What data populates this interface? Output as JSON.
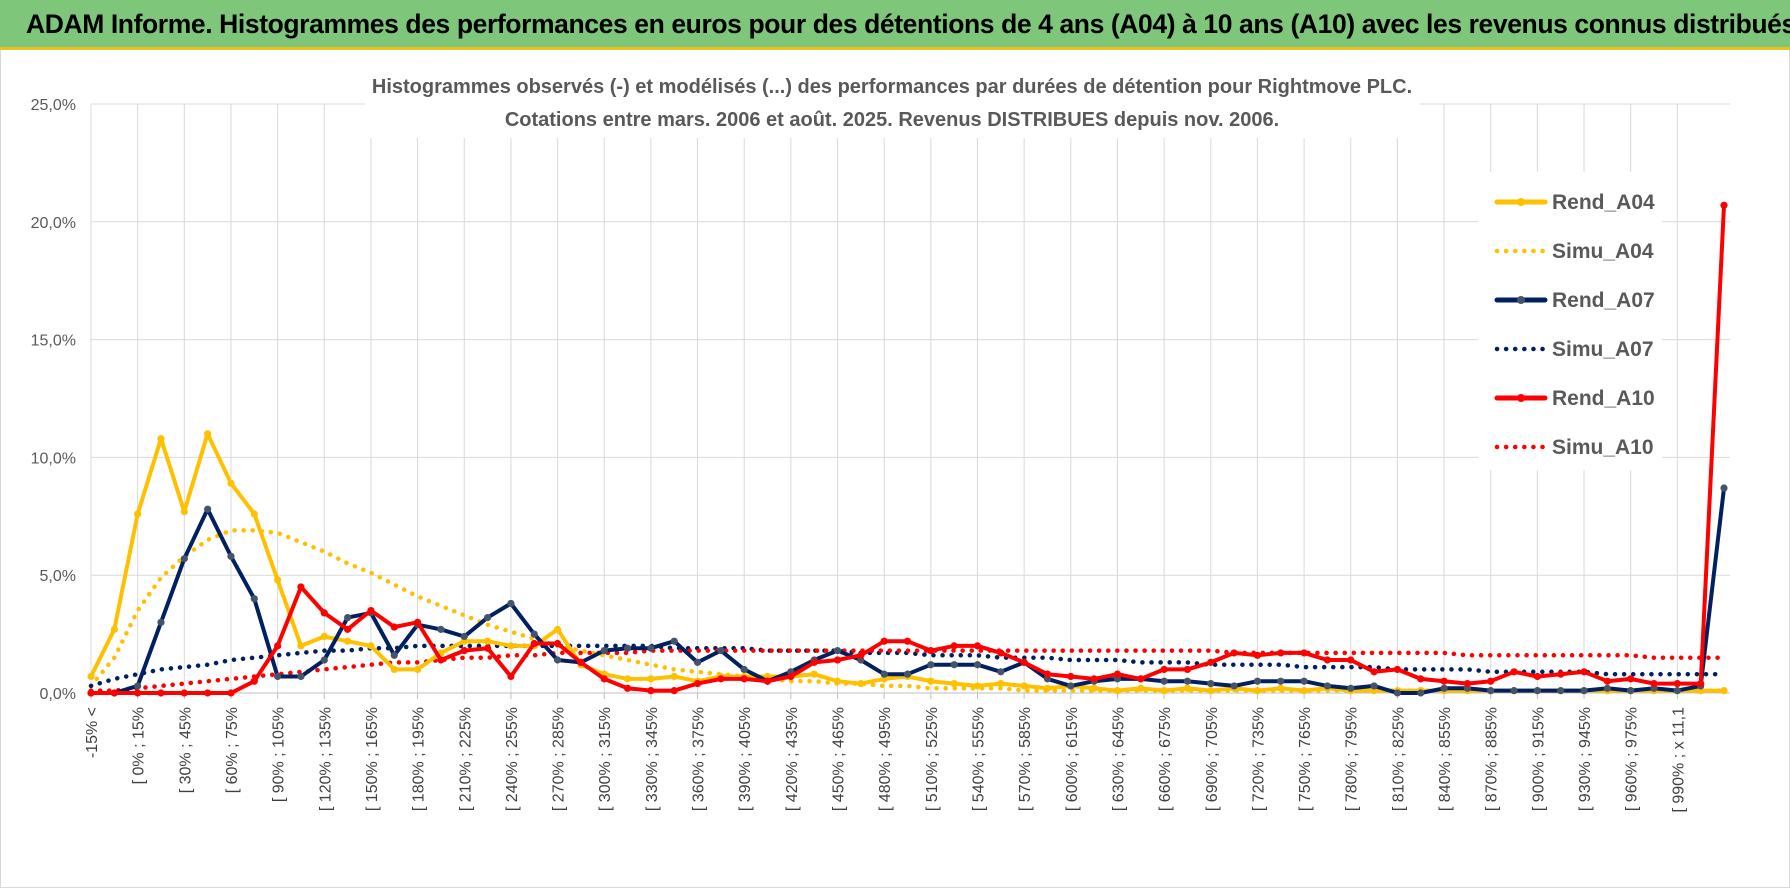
{
  "header": {
    "title": "ADAM Informe. Histogrammes des performances en euros pour des détentions de 4 ans (A04) à 10 ans (A10) avec les revenus connus distribués"
  },
  "chart_data": {
    "type": "line",
    "title_line1": "Histogrammes observés (-) et modélisés (...) des performances par durées de détention pour Rightmove PLC.",
    "title_line2": "Cotations entre mars. 2006 et août. 2025. Revenus DISTRIBUES depuis nov. 2006.",
    "ylim": [
      0,
      25
    ],
    "yticks": [
      "0,0%",
      "5,0%",
      "10,0%",
      "15,0%",
      "20,0%",
      "25,0%"
    ],
    "grid": true,
    "legend_position": "right",
    "category_labels": [
      "-15% <",
      "[ 0% ; 15%",
      "[ 30% ; 45%",
      "[ 60% ; 75%",
      "[ 90% ; 105%",
      "[ 120% ; 135%",
      "[ 150% ; 165%",
      "[ 180% ; 195%",
      "[ 210% ; 225%",
      "[ 240% ; 255%",
      "[ 270% ; 285%",
      "[ 300% ; 315%",
      "[ 330% ; 345%",
      "[ 360% ; 375%",
      "[ 390% ; 405%",
      "[ 420% ; 435%",
      "[ 450% ; 465%",
      "[ 480% ; 495%",
      "[ 510% ; 525%",
      "[ 540% ; 555%",
      "[ 570% ; 585%",
      "[ 600% ; 615%",
      "[ 630% ; 645%",
      "[ 660% ; 675%",
      "[ 690% ; 705%",
      "[ 720% ; 735%",
      "[ 750% ; 765%",
      "[ 780% ; 795%",
      "[ 810% ; 825%",
      "[ 840% ; 855%",
      "[ 870% ; 885%",
      "[ 900% ; 915%",
      "[ 930% ; 945%",
      "[ 960% ; 975%",
      "[ 990% ; x 11,1"
    ],
    "series": [
      {
        "name": "Rend_A04",
        "style": "solid",
        "color": "#ffc000",
        "values": [
          0.7,
          2.7,
          7.6,
          10.8,
          7.7,
          11.0,
          8.9,
          7.6,
          4.8,
          2.0,
          2.4,
          2.2,
          2.0,
          1.0,
          1.0,
          1.7,
          2.2,
          2.2,
          2.0,
          2.0,
          2.7,
          1.2,
          0.8,
          0.6,
          0.6,
          0.7,
          0.5,
          0.7,
          0.7,
          0.7,
          0.7,
          0.8,
          0.5,
          0.4,
          0.6,
          0.7,
          0.5,
          0.4,
          0.3,
          0.4,
          0.3,
          0.2,
          0.3,
          0.2,
          0.1,
          0.2,
          0.1,
          0.2,
          0.1,
          0.2,
          0.1,
          0.2,
          0.1,
          0.2,
          0.1,
          0.1,
          0.1,
          0.1,
          0.1,
          0.1,
          0.1,
          0.1,
          0.1,
          0.1,
          0.1,
          0.1,
          0.1,
          0.1,
          0.1,
          0.1,
          0.1
        ]
      },
      {
        "name": "Simu_A04",
        "style": "dotted",
        "color": "#ffc000",
        "values": [
          0.3,
          1.5,
          3.5,
          4.9,
          5.8,
          6.5,
          6.9,
          6.9,
          6.8,
          6.4,
          6.0,
          5.5,
          5.1,
          4.6,
          4.1,
          3.7,
          3.3,
          2.9,
          2.6,
          2.3,
          2.0,
          1.8,
          1.6,
          1.4,
          1.2,
          1.0,
          0.9,
          0.8,
          0.7,
          0.6,
          0.5,
          0.5,
          0.4,
          0.4,
          0.3,
          0.3,
          0.2,
          0.2,
          0.2,
          0.2,
          0.1,
          0.1,
          0.1,
          0.1,
          0.1,
          0.1,
          0.1,
          0.1,
          0.1,
          0.1,
          0.1,
          0.1,
          0.1,
          0.1,
          0.1,
          0.1,
          0.1,
          0.1,
          0.1,
          0.1,
          0.1,
          0.1,
          0.1,
          0.1,
          0.1,
          0.1,
          0.1,
          0.1,
          0.1,
          0.1,
          0.1
        ]
      },
      {
        "name": "Rend_A07",
        "style": "solid",
        "color": "#002060",
        "values": [
          0.0,
          0.0,
          0.3,
          3.0,
          5.7,
          7.8,
          5.8,
          4.0,
          0.7,
          0.7,
          1.4,
          3.2,
          3.4,
          1.6,
          2.9,
          2.7,
          2.4,
          3.2,
          3.8,
          2.5,
          1.4,
          1.3,
          1.8,
          1.9,
          1.9,
          2.2,
          1.3,
          1.8,
          1.0,
          0.5,
          0.9,
          1.4,
          1.8,
          1.4,
          0.8,
          0.8,
          1.2,
          1.2,
          1.2,
          0.9,
          1.3,
          0.6,
          0.3,
          0.5,
          0.6,
          0.6,
          0.5,
          0.5,
          0.4,
          0.3,
          0.5,
          0.5,
          0.5,
          0.3,
          0.2,
          0.3,
          0.0,
          0.0,
          0.2,
          0.2,
          0.1,
          0.1,
          0.1,
          0.1,
          0.1,
          0.2,
          0.1,
          0.2,
          0.1,
          0.3,
          8.7
        ]
      },
      {
        "name": "Simu_A07",
        "style": "dotted",
        "color": "#002060",
        "values": [
          0.3,
          0.6,
          0.8,
          1.0,
          1.1,
          1.2,
          1.4,
          1.5,
          1.6,
          1.7,
          1.8,
          1.8,
          1.9,
          1.9,
          2.0,
          2.0,
          2.0,
          2.0,
          2.0,
          2.0,
          2.0,
          2.0,
          2.0,
          2.0,
          2.0,
          1.9,
          1.9,
          1.9,
          1.9,
          1.8,
          1.8,
          1.8,
          1.8,
          1.7,
          1.7,
          1.7,
          1.6,
          1.6,
          1.6,
          1.5,
          1.5,
          1.5,
          1.4,
          1.4,
          1.4,
          1.3,
          1.3,
          1.3,
          1.2,
          1.2,
          1.2,
          1.2,
          1.1,
          1.1,
          1.1,
          1.1,
          1.0,
          1.0,
          1.0,
          1.0,
          0.9,
          0.9,
          0.9,
          0.9,
          0.9,
          0.8,
          0.8,
          0.8,
          0.8,
          0.8,
          0.8
        ]
      },
      {
        "name": "Rend_A10",
        "style": "solid",
        "color": "#ff0000",
        "values": [
          0.0,
          0.0,
          0.0,
          0.0,
          0.0,
          0.0,
          0.0,
          0.5,
          2.0,
          4.5,
          3.4,
          2.7,
          3.5,
          2.8,
          3.0,
          1.4,
          1.8,
          1.9,
          0.7,
          2.1,
          2.1,
          1.3,
          0.6,
          0.2,
          0.1,
          0.1,
          0.4,
          0.6,
          0.6,
          0.5,
          0.7,
          1.3,
          1.4,
          1.6,
          2.2,
          2.2,
          1.8,
          2.0,
          2.0,
          1.7,
          1.3,
          0.8,
          0.7,
          0.6,
          0.8,
          0.6,
          1.0,
          1.0,
          1.3,
          1.7,
          1.6,
          1.7,
          1.7,
          1.4,
          1.4,
          0.9,
          1.0,
          0.6,
          0.5,
          0.4,
          0.5,
          0.9,
          0.7,
          0.8,
          0.9,
          0.5,
          0.6,
          0.4,
          0.4,
          0.4,
          20.7
        ]
      },
      {
        "name": "Simu_A10",
        "style": "dotted",
        "color": "#ff0000",
        "values": [
          0.1,
          0.1,
          0.2,
          0.3,
          0.4,
          0.5,
          0.6,
          0.7,
          0.8,
          0.9,
          1.0,
          1.1,
          1.2,
          1.3,
          1.3,
          1.4,
          1.5,
          1.5,
          1.6,
          1.6,
          1.7,
          1.7,
          1.7,
          1.7,
          1.8,
          1.8,
          1.8,
          1.8,
          1.8,
          1.8,
          1.8,
          1.8,
          1.8,
          1.8,
          1.8,
          1.8,
          1.8,
          1.8,
          1.8,
          1.8,
          1.8,
          1.8,
          1.8,
          1.8,
          1.8,
          1.8,
          1.8,
          1.8,
          1.8,
          1.7,
          1.7,
          1.7,
          1.7,
          1.7,
          1.7,
          1.7,
          1.7,
          1.7,
          1.7,
          1.6,
          1.6,
          1.6,
          1.6,
          1.6,
          1.6,
          1.6,
          1.6,
          1.5,
          1.5,
          1.5,
          1.5
        ]
      }
    ]
  }
}
